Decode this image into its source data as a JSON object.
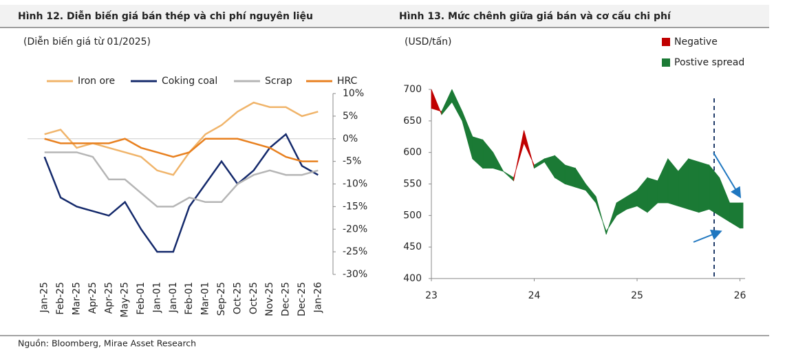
{
  "chart_data": [
    {
      "type": "line",
      "title": "Hình 12. Diễn biến giá bán thép và chi phí nguyên liệu",
      "subtitle": "(Diễn biến giá từ 01/2025)",
      "categories": [
        "Jan-25",
        "Feb-25",
        "Mar-25",
        "Apr-25",
        "Apr-25",
        "May-25",
        "Feb-01",
        "Jan-01",
        "Jan-01",
        "Feb-01",
        "Mar-01",
        "Sep-25",
        "Oct-25",
        "Oct-25",
        "Nov-25",
        "Dec-25",
        "Dec-25",
        "Jan-26"
      ],
      "series": [
        {
          "name": "Iron ore",
          "color": "#f0b46a",
          "values": [
            1,
            2,
            -2,
            -1,
            -2,
            -3,
            -4,
            -7,
            -8,
            -3,
            1,
            3,
            6,
            8,
            7,
            7,
            5,
            6
          ]
        },
        {
          "name": "Coking coal",
          "color": "#14296b",
          "values": [
            -4,
            -13,
            -15,
            -16,
            -17,
            -14,
            -20,
            -25,
            -25,
            -15,
            -10,
            -5,
            -10,
            -7,
            -2,
            1,
            -6,
            -8
          ]
        },
        {
          "name": "Scrap",
          "color": "#b5b5b5",
          "values": [
            -3,
            -3,
            -3,
            -4,
            -9,
            -9,
            -12,
            -15,
            -15,
            -13,
            -14,
            -14,
            -10,
            -8,
            -7,
            -8,
            -8,
            -7
          ]
        },
        {
          "name": "HRC",
          "color": "#e8801f",
          "values": [
            0,
            -1,
            -1,
            -1,
            -1,
            0,
            -2,
            -3,
            -4,
            -3,
            0,
            0,
            0,
            -1,
            -2,
            -4,
            -5,
            -5
          ]
        }
      ],
      "ylim": [
        -30,
        10
      ],
      "yticks": [
        {
          "value": 10,
          "label": "10%"
        },
        {
          "value": 5,
          "label": "5%"
        },
        {
          "value": 0,
          "label": "0%"
        },
        {
          "value": -5,
          "label": "-5%"
        },
        {
          "value": -10,
          "label": "-10%"
        },
        {
          "value": -15,
          "label": "-15%"
        },
        {
          "value": -20,
          "label": "-20%"
        },
        {
          "value": -25,
          "label": "-25%"
        },
        {
          "value": -30,
          "label": "-30%"
        }
      ],
      "legend": "top"
    },
    {
      "type": "spread_area",
      "title": "Hình 13. Mức chênh giữa giá bán và cơ cấu chi phí",
      "subtitle": "(USD/tấn)",
      "series": [
        {
          "name": "Negative",
          "color": "#c00000"
        },
        {
          "name": "Postive spread",
          "color": "#1b7a35"
        }
      ],
      "x": [
        23.0,
        23.1,
        23.2,
        23.3,
        23.4,
        23.5,
        23.6,
        23.7,
        23.8,
        23.9,
        24.0,
        24.1,
        24.2,
        24.3,
        24.4,
        24.5,
        24.6,
        24.7,
        24.8,
        24.9,
        25.0,
        25.1,
        25.2,
        25.3,
        25.4,
        25.5,
        25.6,
        25.7,
        25.8,
        25.9,
        26.0,
        26.03
      ],
      "price": [
        670,
        665,
        700,
        665,
        625,
        620,
        600,
        570,
        560,
        615,
        580,
        590,
        595,
        580,
        575,
        550,
        530,
        470,
        520,
        530,
        540,
        560,
        555,
        590,
        570,
        590,
        585,
        580,
        560,
        520,
        520,
        520
      ],
      "cost": [
        700,
        660,
        680,
        650,
        590,
        575,
        575,
        570,
        555,
        635,
        575,
        585,
        560,
        550,
        545,
        540,
        520,
        475,
        500,
        510,
        515,
        505,
        520,
        520,
        515,
        510,
        505,
        510,
        500,
        490,
        480,
        480
      ],
      "xlim": [
        23,
        26.05
      ],
      "xticks": [
        23,
        24,
        25,
        26
      ],
      "ylim": [
        400,
        700
      ],
      "yticks": [
        400,
        450,
        500,
        550,
        600,
        650,
        700
      ],
      "legend": "upper right"
    }
  ],
  "source": "Nguồn: Bloomberg, Mirae Asset Research"
}
